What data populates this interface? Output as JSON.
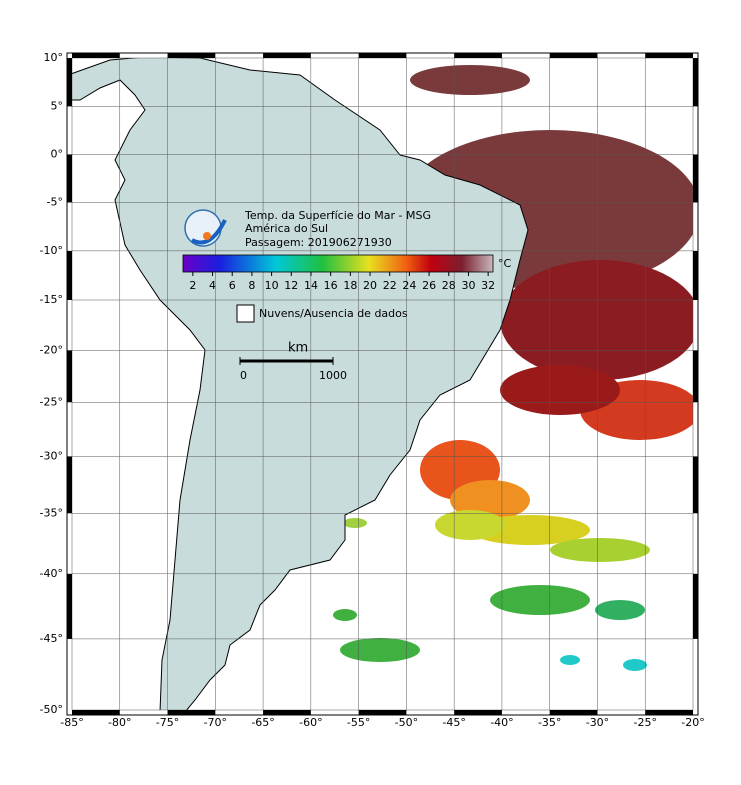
{
  "map": {
    "title_lines": [
      "Temp. da Superfície do Mar - MSG",
      "América do Sul",
      "Passagem: 201906271930"
    ],
    "lonlim": [
      -85,
      -20
    ],
    "latlim": [
      -50,
      10
    ],
    "lonticks": [
      {
        "value": -85,
        "label": "-85°"
      },
      {
        "value": -80,
        "label": "-80°"
      },
      {
        "value": -75,
        "label": "-75°"
      },
      {
        "value": -70,
        "label": "-70°"
      },
      {
        "value": -65,
        "label": "-65°"
      },
      {
        "value": -60,
        "label": "-60°"
      },
      {
        "value": -55,
        "label": "-55°"
      },
      {
        "value": -50,
        "label": "-50°"
      },
      {
        "value": -45,
        "label": "-45°"
      },
      {
        "value": -40,
        "label": "-40°"
      },
      {
        "value": -35,
        "label": "-35°"
      },
      {
        "value": -30,
        "label": "-30°"
      },
      {
        "value": -25,
        "label": "-25°"
      },
      {
        "value": -20,
        "label": "-20°"
      }
    ],
    "latticks": [
      {
        "value": 10,
        "label": "10°"
      },
      {
        "value": 5,
        "label": "5°"
      },
      {
        "value": 0,
        "label": "0°"
      },
      {
        "value": -5,
        "label": "-5°"
      },
      {
        "value": -10,
        "label": "-10°"
      },
      {
        "value": -15,
        "label": "-15°"
      },
      {
        "value": -20,
        "label": "-20°"
      },
      {
        "value": -25,
        "label": "-25°"
      },
      {
        "value": -30,
        "label": "-30°"
      },
      {
        "value": -35,
        "label": "-35°"
      },
      {
        "value": -40,
        "label": "-40°"
      },
      {
        "value": -45,
        "label": "-45°"
      },
      {
        "value": -50,
        "label": "-50°"
      }
    ],
    "colorbar": {
      "lim": [
        1,
        33
      ],
      "ticks": [
        2,
        4,
        6,
        8,
        10,
        12,
        14,
        16,
        18,
        20,
        22,
        24,
        26,
        28,
        30,
        32
      ],
      "unit": "°C"
    },
    "legend": "Nuvens/Ausencia de dados",
    "scale": {
      "unit": "km",
      "ticks": [
        0,
        1000
      ]
    }
  }
}
